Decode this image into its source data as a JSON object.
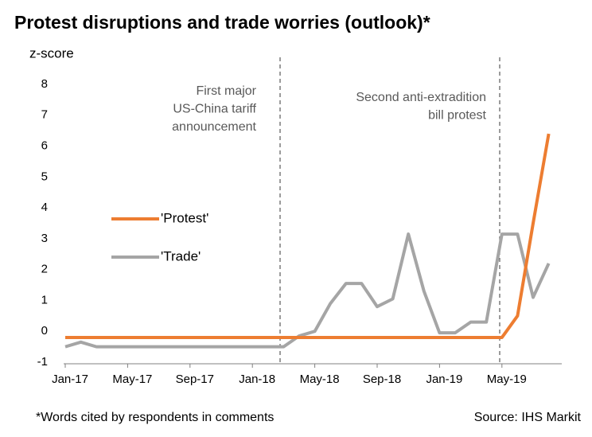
{
  "chart_data": {
    "type": "line",
    "title": "Protest disruptions and trade worries (outlook)*",
    "y_label": "z-score",
    "footnote": "*Words cited by respondents in comments",
    "source": "Source: IHS Markit",
    "annotations": [
      {
        "lines": [
          "First major",
          "US-China tariff",
          "announcement"
        ]
      },
      {
        "lines": [
          "Second anti-extradition",
          "bill protest"
        ]
      }
    ],
    "categories": [
      "Jan-17",
      null,
      null,
      null,
      "May-17",
      null,
      null,
      null,
      "Sep-17",
      null,
      null,
      null,
      "Jan-18",
      null,
      null,
      null,
      "May-18",
      null,
      null,
      null,
      "Sep-18",
      null,
      null,
      null,
      "Jan-19",
      null,
      null,
      null,
      "May-19",
      null,
      null,
      null
    ],
    "series": [
      {
        "name": "'Protest'",
        "color": "#ed7d31",
        "values": [
          -0.2,
          -0.2,
          -0.2,
          -0.2,
          -0.2,
          -0.2,
          -0.2,
          -0.2,
          -0.2,
          -0.2,
          -0.2,
          -0.2,
          -0.2,
          -0.2,
          -0.2,
          -0.2,
          -0.2,
          -0.2,
          -0.2,
          -0.2,
          -0.2,
          -0.2,
          -0.2,
          -0.2,
          -0.2,
          -0.2,
          -0.2,
          -0.2,
          -0.2,
          0.5,
          3.5,
          6.4
        ]
      },
      {
        "name": "'Trade'",
        "color": "#a5a5a5",
        "values": [
          -0.5,
          -0.35,
          -0.5,
          -0.5,
          -0.5,
          -0.5,
          -0.5,
          -0.5,
          -0.5,
          -0.5,
          -0.5,
          -0.5,
          -0.5,
          -0.5,
          -0.5,
          -0.15,
          0.0,
          0.9,
          1.55,
          1.55,
          0.8,
          1.05,
          3.15,
          1.3,
          -0.05,
          -0.05,
          0.3,
          0.3,
          3.15,
          3.15,
          1.1,
          2.2
        ]
      }
    ],
    "ylim": [
      -1,
      8
    ],
    "yticks": [
      -1,
      0,
      1,
      2,
      3,
      4,
      5,
      6,
      7,
      8
    ],
    "legend": "left"
  }
}
